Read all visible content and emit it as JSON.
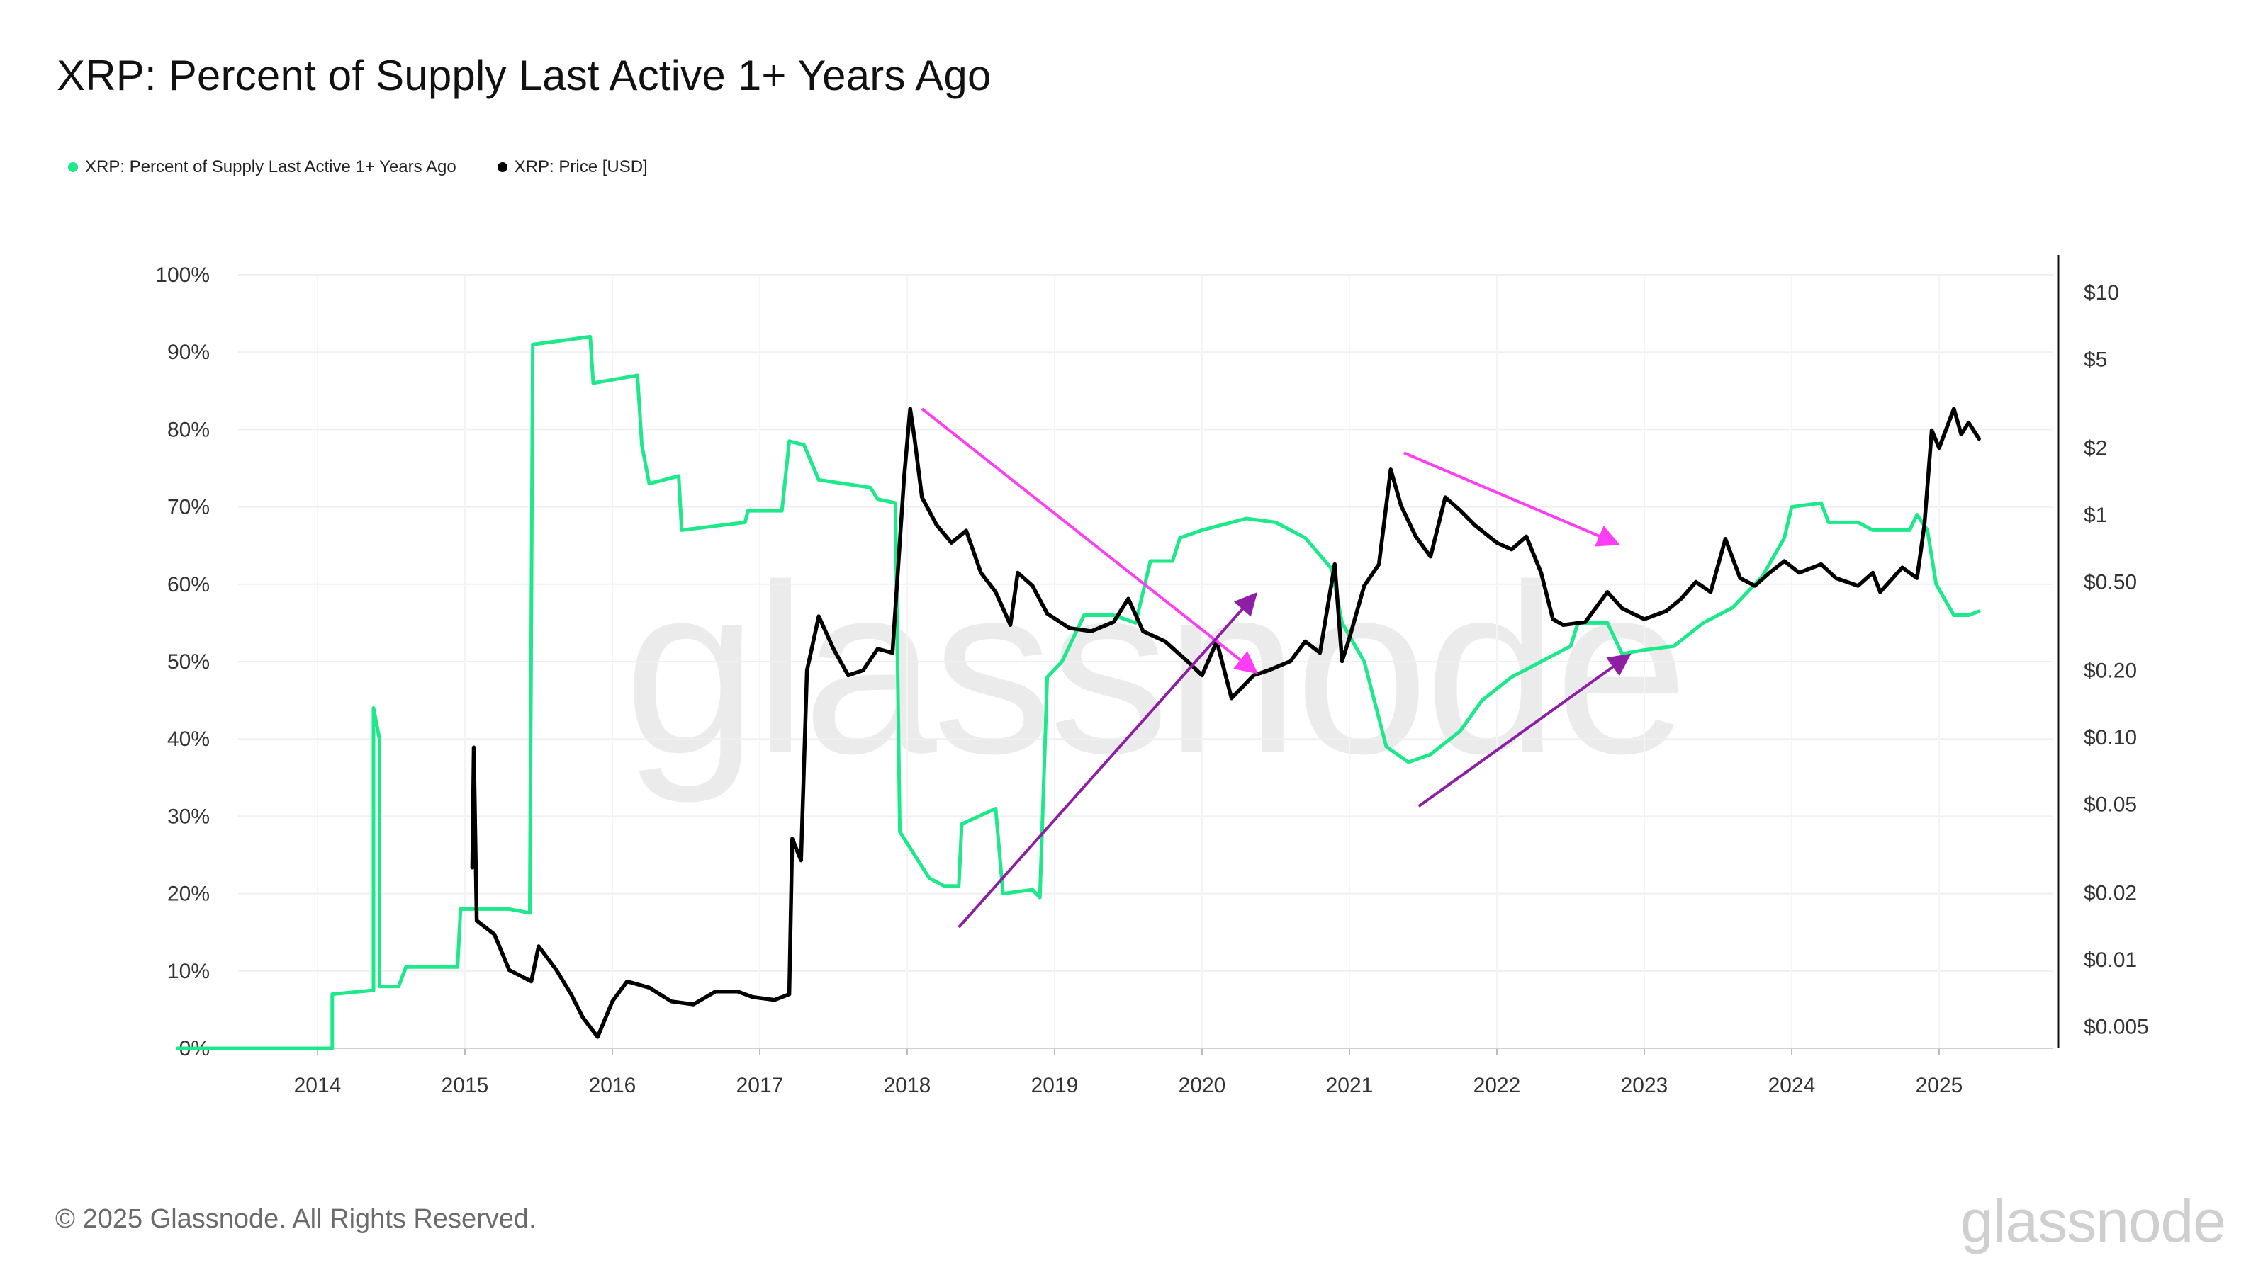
{
  "title": "XRP: Percent of Supply Last Active 1+ Years Ago",
  "legend": [
    {
      "label": "XRP: Percent of Supply Last Active 1+ Years Ago",
      "color": "#1de88a"
    },
    {
      "label": "XRP: Price [USD]",
      "color": "#000000"
    }
  ],
  "footer": "© 2025 Glassnode. All Rights Reserved.",
  "brand": "glassnode",
  "watermark": "glassnode",
  "chart_data": {
    "type": "line",
    "xlim": [
      2013.0,
      2025.3
    ],
    "x_ticks": [
      "2014",
      "2015",
      "2016",
      "2017",
      "2018",
      "2019",
      "2020",
      "2021",
      "2022",
      "2023",
      "2024",
      "2025"
    ],
    "y_left_ticks": [
      "0%",
      "10%",
      "20%",
      "30%",
      "40%",
      "50%",
      "60%",
      "70%",
      "80%",
      "90%",
      "100%"
    ],
    "y_left_range": [
      0,
      100
    ],
    "y_right_ticks": [
      "$0.005",
      "$0.01",
      "$0.02",
      "$0.05",
      "$0.10",
      "$0.20",
      "$0.50",
      "$1",
      "$2",
      "$5",
      "$10"
    ],
    "y_right_values": [
      0.005,
      0.01,
      0.02,
      0.05,
      0.1,
      0.2,
      0.5,
      1,
      2,
      5,
      10
    ],
    "y_right_scale": "log",
    "grid": true,
    "legend_position": "top-left",
    "series": [
      {
        "name": "XRP: Percent of Supply Last Active 1+ Years Ago",
        "axis": "left",
        "color": "#1de88a",
        "points": [
          [
            2013.05,
            0
          ],
          [
            2014.1,
            0
          ],
          [
            2014.1,
            7
          ],
          [
            2014.38,
            7.5
          ],
          [
            2014.38,
            44
          ],
          [
            2014.42,
            40
          ],
          [
            2014.42,
            8
          ],
          [
            2014.55,
            8
          ],
          [
            2014.6,
            10.5
          ],
          [
            2014.95,
            10.5
          ],
          [
            2014.97,
            18
          ],
          [
            2015.3,
            18
          ],
          [
            2015.44,
            17.5
          ],
          [
            2015.46,
            91
          ],
          [
            2015.85,
            92
          ],
          [
            2015.87,
            86
          ],
          [
            2016.17,
            87
          ],
          [
            2016.2,
            78
          ],
          [
            2016.25,
            73
          ],
          [
            2016.45,
            74
          ],
          [
            2016.47,
            67
          ],
          [
            2016.9,
            68
          ],
          [
            2016.92,
            69.5
          ],
          [
            2017.15,
            69.5
          ],
          [
            2017.2,
            78.5
          ],
          [
            2017.3,
            78
          ],
          [
            2017.4,
            73.5
          ],
          [
            2017.75,
            72.5
          ],
          [
            2017.8,
            71
          ],
          [
            2017.92,
            70.5
          ],
          [
            2017.95,
            28
          ],
          [
            2018.05,
            25
          ],
          [
            2018.15,
            22
          ],
          [
            2018.25,
            21
          ],
          [
            2018.35,
            21
          ],
          [
            2018.37,
            29
          ],
          [
            2018.6,
            31
          ],
          [
            2018.65,
            20
          ],
          [
            2018.85,
            20.5
          ],
          [
            2018.9,
            19.5
          ],
          [
            2018.95,
            48
          ],
          [
            2019.05,
            50
          ],
          [
            2019.2,
            56
          ],
          [
            2019.4,
            56
          ],
          [
            2019.55,
            55
          ],
          [
            2019.65,
            63
          ],
          [
            2019.8,
            63
          ],
          [
            2019.85,
            66
          ],
          [
            2020.0,
            67
          ],
          [
            2020.3,
            68.5
          ],
          [
            2020.5,
            68
          ],
          [
            2020.7,
            66
          ],
          [
            2020.88,
            62
          ],
          [
            2020.95,
            55
          ],
          [
            2021.1,
            50
          ],
          [
            2021.25,
            39
          ],
          [
            2021.4,
            37
          ],
          [
            2021.55,
            38
          ],
          [
            2021.75,
            41
          ],
          [
            2021.9,
            45
          ],
          [
            2022.1,
            48
          ],
          [
            2022.3,
            50
          ],
          [
            2022.5,
            52
          ],
          [
            2022.55,
            55
          ],
          [
            2022.75,
            55
          ],
          [
            2022.85,
            51
          ],
          [
            2023.0,
            51.5
          ],
          [
            2023.2,
            52
          ],
          [
            2023.4,
            55
          ],
          [
            2023.6,
            57
          ],
          [
            2023.8,
            61
          ],
          [
            2023.95,
            66
          ],
          [
            2024.0,
            70
          ],
          [
            2024.2,
            70.5
          ],
          [
            2024.25,
            68
          ],
          [
            2024.45,
            68
          ],
          [
            2024.55,
            67
          ],
          [
            2024.8,
            67
          ],
          [
            2024.85,
            69
          ],
          [
            2024.92,
            67
          ],
          [
            2024.98,
            60
          ],
          [
            2025.1,
            56
          ],
          [
            2025.2,
            56
          ],
          [
            2025.27,
            56.5
          ]
        ]
      },
      {
        "name": "XRP: Price [USD]",
        "axis": "right",
        "color": "#000000",
        "points": [
          [
            2015.05,
            0.026
          ],
          [
            2015.06,
            0.09
          ],
          [
            2015.08,
            0.015
          ],
          [
            2015.2,
            0.013
          ],
          [
            2015.3,
            0.009
          ],
          [
            2015.45,
            0.008
          ],
          [
            2015.5,
            0.0115
          ],
          [
            2015.62,
            0.009
          ],
          [
            2015.72,
            0.007
          ],
          [
            2015.8,
            0.0055
          ],
          [
            2015.9,
            0.0045
          ],
          [
            2016.0,
            0.0065
          ],
          [
            2016.1,
            0.008
          ],
          [
            2016.25,
            0.0075
          ],
          [
            2016.4,
            0.0065
          ],
          [
            2016.55,
            0.0063
          ],
          [
            2016.7,
            0.0072
          ],
          [
            2016.85,
            0.0072
          ],
          [
            2016.95,
            0.0068
          ],
          [
            2017.1,
            0.0066
          ],
          [
            2017.2,
            0.007
          ],
          [
            2017.22,
            0.035
          ],
          [
            2017.28,
            0.028
          ],
          [
            2017.32,
            0.2
          ],
          [
            2017.4,
            0.35
          ],
          [
            2017.5,
            0.25
          ],
          [
            2017.6,
            0.19
          ],
          [
            2017.7,
            0.2
          ],
          [
            2017.8,
            0.25
          ],
          [
            2017.9,
            0.24
          ],
          [
            2017.98,
            1.5
          ],
          [
            2018.02,
            3.0
          ],
          [
            2018.05,
            2.2
          ],
          [
            2018.1,
            1.2
          ],
          [
            2018.2,
            0.9
          ],
          [
            2018.3,
            0.75
          ],
          [
            2018.4,
            0.85
          ],
          [
            2018.5,
            0.55
          ],
          [
            2018.6,
            0.45
          ],
          [
            2018.7,
            0.32
          ],
          [
            2018.75,
            0.55
          ],
          [
            2018.85,
            0.48
          ],
          [
            2018.95,
            0.36
          ],
          [
            2019.1,
            0.31
          ],
          [
            2019.25,
            0.3
          ],
          [
            2019.4,
            0.33
          ],
          [
            2019.5,
            0.42
          ],
          [
            2019.6,
            0.3
          ],
          [
            2019.75,
            0.27
          ],
          [
            2019.9,
            0.22
          ],
          [
            2020.0,
            0.19
          ],
          [
            2020.1,
            0.27
          ],
          [
            2020.2,
            0.15
          ],
          [
            2020.35,
            0.19
          ],
          [
            2020.45,
            0.2
          ],
          [
            2020.6,
            0.22
          ],
          [
            2020.7,
            0.27
          ],
          [
            2020.8,
            0.24
          ],
          [
            2020.9,
            0.6
          ],
          [
            2020.95,
            0.22
          ],
          [
            2021.0,
            0.28
          ],
          [
            2021.1,
            0.48
          ],
          [
            2021.2,
            0.6
          ],
          [
            2021.28,
            1.6
          ],
          [
            2021.35,
            1.1
          ],
          [
            2021.45,
            0.8
          ],
          [
            2021.55,
            0.65
          ],
          [
            2021.65,
            1.2
          ],
          [
            2021.75,
            1.05
          ],
          [
            2021.85,
            0.9
          ],
          [
            2022.0,
            0.75
          ],
          [
            2022.1,
            0.7
          ],
          [
            2022.2,
            0.8
          ],
          [
            2022.3,
            0.55
          ],
          [
            2022.38,
            0.34
          ],
          [
            2022.45,
            0.32
          ],
          [
            2022.6,
            0.33
          ],
          [
            2022.75,
            0.45
          ],
          [
            2022.85,
            0.38
          ],
          [
            2023.0,
            0.34
          ],
          [
            2023.15,
            0.37
          ],
          [
            2023.25,
            0.42
          ],
          [
            2023.35,
            0.5
          ],
          [
            2023.45,
            0.45
          ],
          [
            2023.55,
            0.78
          ],
          [
            2023.65,
            0.52
          ],
          [
            2023.75,
            0.48
          ],
          [
            2023.85,
            0.55
          ],
          [
            2023.95,
            0.62
          ],
          [
            2024.05,
            0.55
          ],
          [
            2024.2,
            0.6
          ],
          [
            2024.3,
            0.52
          ],
          [
            2024.45,
            0.48
          ],
          [
            2024.55,
            0.55
          ],
          [
            2024.6,
            0.45
          ],
          [
            2024.75,
            0.58
          ],
          [
            2024.85,
            0.52
          ],
          [
            2024.9,
            0.9
          ],
          [
            2024.95,
            2.4
          ],
          [
            2025.0,
            2.0
          ],
          [
            2025.1,
            3.0
          ],
          [
            2025.15,
            2.3
          ],
          [
            2025.2,
            2.6
          ],
          [
            2025.27,
            2.2
          ]
        ]
      }
    ],
    "annotations": [
      {
        "type": "arrow",
        "color": "#ff3df5",
        "from": [
          2018.1,
          3.0
        ],
        "to": [
          2020.35,
          0.2
        ]
      },
      {
        "type": "arrow",
        "color": "#8e1ea6",
        "from": [
          2018.35,
          0.014
        ],
        "to": [
          2020.35,
          0.43
        ]
      },
      {
        "type": "arrow",
        "color": "#ff3df5",
        "from": [
          2021.37,
          1.9
        ],
        "to": [
          2022.8,
          0.75
        ]
      },
      {
        "type": "arrow",
        "color": "#8e1ea6",
        "from": [
          2021.47,
          0.049
        ],
        "to": [
          2022.88,
          0.23
        ]
      }
    ]
  }
}
